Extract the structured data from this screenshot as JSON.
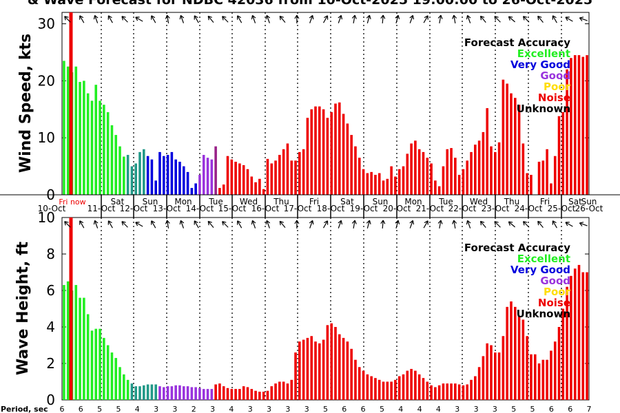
{
  "title": "& Wave Forecast for NDBC 42036 from 10-Oct-2025 19:00:00 to 26-Oct-2025",
  "colors": {
    "excellent": "#22ee22",
    "very_good": "#0000dd",
    "good": "#9933dd",
    "poor": "#ffdd00",
    "noise": "#ee0000",
    "unknown": "#000000",
    "teal": "#229988",
    "transition": "#992288",
    "now_line": "#ee0000"
  },
  "legend": {
    "title": "Forecast Accuracy",
    "items": [
      {
        "label": "Excellent",
        "color": "#22ee22"
      },
      {
        "label": "Very Good",
        "color": "#0000dd"
      },
      {
        "label": "Good",
        "color": "#9933dd"
      },
      {
        "label": "Poor",
        "color": "#ffdd00"
      },
      {
        "label": "Noise",
        "color": "#ee0000"
      },
      {
        "label": "Unknown",
        "color": "#000000"
      }
    ]
  },
  "now_label": "Fri now",
  "date_axis": {
    "days": [
      "",
      "Sat",
      "Sun",
      "Mon",
      "Tue",
      "Wed",
      "Thu",
      "Fri",
      "Sat",
      "Sun",
      "Mon",
      "Tue",
      "Wed",
      "Thu",
      "Fri",
      "Sat",
      "Sun"
    ],
    "dates": [
      "10-Oct",
      "11-Oct",
      "12-Oct",
      "13-Oct",
      "14-Oct",
      "15-Oct",
      "16-Oct",
      "17-Oct",
      "18-Oct",
      "19-Oct",
      "20-Oct",
      "21-Oct",
      "22-Oct",
      "23-Oct",
      "24-Oct",
      "25-Oct",
      "26-Oct"
    ]
  },
  "period": {
    "label": "Period, sec",
    "values": [
      "6",
      "6",
      "5",
      "5",
      "4",
      "3",
      "3",
      "2",
      "3",
      "4",
      "3",
      "3",
      "3",
      "3",
      "5",
      "6",
      "6",
      "5",
      "4",
      "4",
      "4",
      "3",
      "3",
      "3",
      "5",
      "5",
      "6",
      "6",
      "7"
    ]
  },
  "chart_data": [
    {
      "type": "bar",
      "ylabel": "Wind Speed, kts",
      "ylim": [
        0,
        32
      ],
      "yticks": [
        0,
        10,
        20,
        30
      ],
      "values": [
        23.5,
        22.5,
        21.5,
        22.5,
        19.8,
        20,
        17.8,
        16.5,
        19.3,
        16.5,
        15.8,
        14.5,
        12.2,
        10.5,
        8.5,
        6.7,
        7,
        5,
        5.5,
        7.5,
        8,
        6.8,
        6.2,
        2.5,
        7.5,
        6.8,
        7,
        7.5,
        6.2,
        5.8,
        5,
        4,
        1.2,
        2,
        3.5,
        7,
        6.5,
        6.2,
        8.5,
        1.2,
        1.8,
        6.8,
        6.2,
        5.8,
        5.5,
        5.2,
        4.5,
        3.2,
        2.2,
        2.8,
        1,
        6.3,
        5.5,
        6,
        7,
        8,
        9,
        6,
        6,
        7.5,
        8,
        13.5,
        15,
        15.5,
        15.5,
        15,
        13.5,
        14.5,
        16,
        16.2,
        14.2,
        12.5,
        10.5,
        8.5,
        6.5,
        4.5,
        3.8,
        4,
        3.5,
        3.8,
        2.5,
        2.8,
        5,
        3.2,
        4.5,
        5,
        7.2,
        9,
        9.5,
        8,
        7.5,
        6.5,
        5.5,
        2.5,
        1.5,
        5,
        8,
        8.2,
        6.5,
        3.5,
        4.5,
        6,
        7.5,
        8.8,
        9.5,
        11,
        15.2,
        8.5,
        7.5,
        9.2,
        20.2,
        19.5,
        17.8,
        17,
        15.8,
        9,
        3.8,
        3.5,
        0,
        5.8,
        6,
        8,
        2,
        6.8,
        13.8,
        14.5,
        22,
        24,
        24.5,
        24.5,
        24.2,
        24.5
      ],
      "segments": [
        {
          "color": "#22ee22",
          "until": 16
        },
        {
          "color": "#229988",
          "until": 21
        },
        {
          "color": "#0000dd",
          "until": 34
        },
        {
          "color": "#9933dd",
          "until": 38
        },
        {
          "color": "#992288",
          "until": 39
        },
        {
          "color": "#ee0000",
          "until": 999
        }
      ]
    },
    {
      "type": "bar",
      "ylabel": "Wave Height, ft",
      "ylim": [
        0,
        10
      ],
      "yticks": [
        0,
        2,
        4,
        6,
        8,
        10
      ],
      "values": [
        6.3,
        6.5,
        6,
        6.3,
        5.6,
        5.6,
        4.7,
        3.8,
        3.9,
        3.9,
        3.4,
        3,
        2.6,
        2.3,
        1.8,
        1.4,
        1.1,
        0.9,
        0.75,
        0.75,
        0.8,
        0.85,
        0.85,
        0.85,
        0.75,
        0.7,
        0.75,
        0.75,
        0.8,
        0.8,
        0.75,
        0.75,
        0.7,
        0.7,
        0.65,
        0.6,
        0.6,
        0.6,
        0.85,
        0.9,
        0.75,
        0.65,
        0.6,
        0.6,
        0.6,
        0.75,
        0.7,
        0.6,
        0.5,
        0.45,
        0.45,
        0.5,
        0.75,
        0.9,
        1,
        1,
        0.9,
        1.1,
        2.6,
        3.2,
        3.3,
        3.4,
        3.5,
        3.2,
        3.1,
        3.3,
        4.1,
        4.2,
        4,
        3.6,
        3.4,
        3.2,
        2.8,
        2.2,
        1.8,
        1.6,
        1.4,
        1.3,
        1.2,
        1.1,
        1,
        1,
        1,
        1.1,
        1.3,
        1.4,
        1.6,
        1.7,
        1.6,
        1.4,
        1.2,
        1,
        0.8,
        0.7,
        0.8,
        0.9,
        0.9,
        0.9,
        0.9,
        0.85,
        0.8,
        0.85,
        1.1,
        1.3,
        1.8,
        2.4,
        3.1,
        3,
        2.6,
        2.6,
        3.5,
        5.1,
        5.4,
        5.1,
        4.6,
        4.4,
        3.5,
        2.5,
        2.5,
        2,
        2.2,
        2.2,
        2.7,
        3.2,
        4,
        5,
        6.2,
        6.8,
        7.2,
        7.4,
        7,
        7
      ]
    }
  ]
}
